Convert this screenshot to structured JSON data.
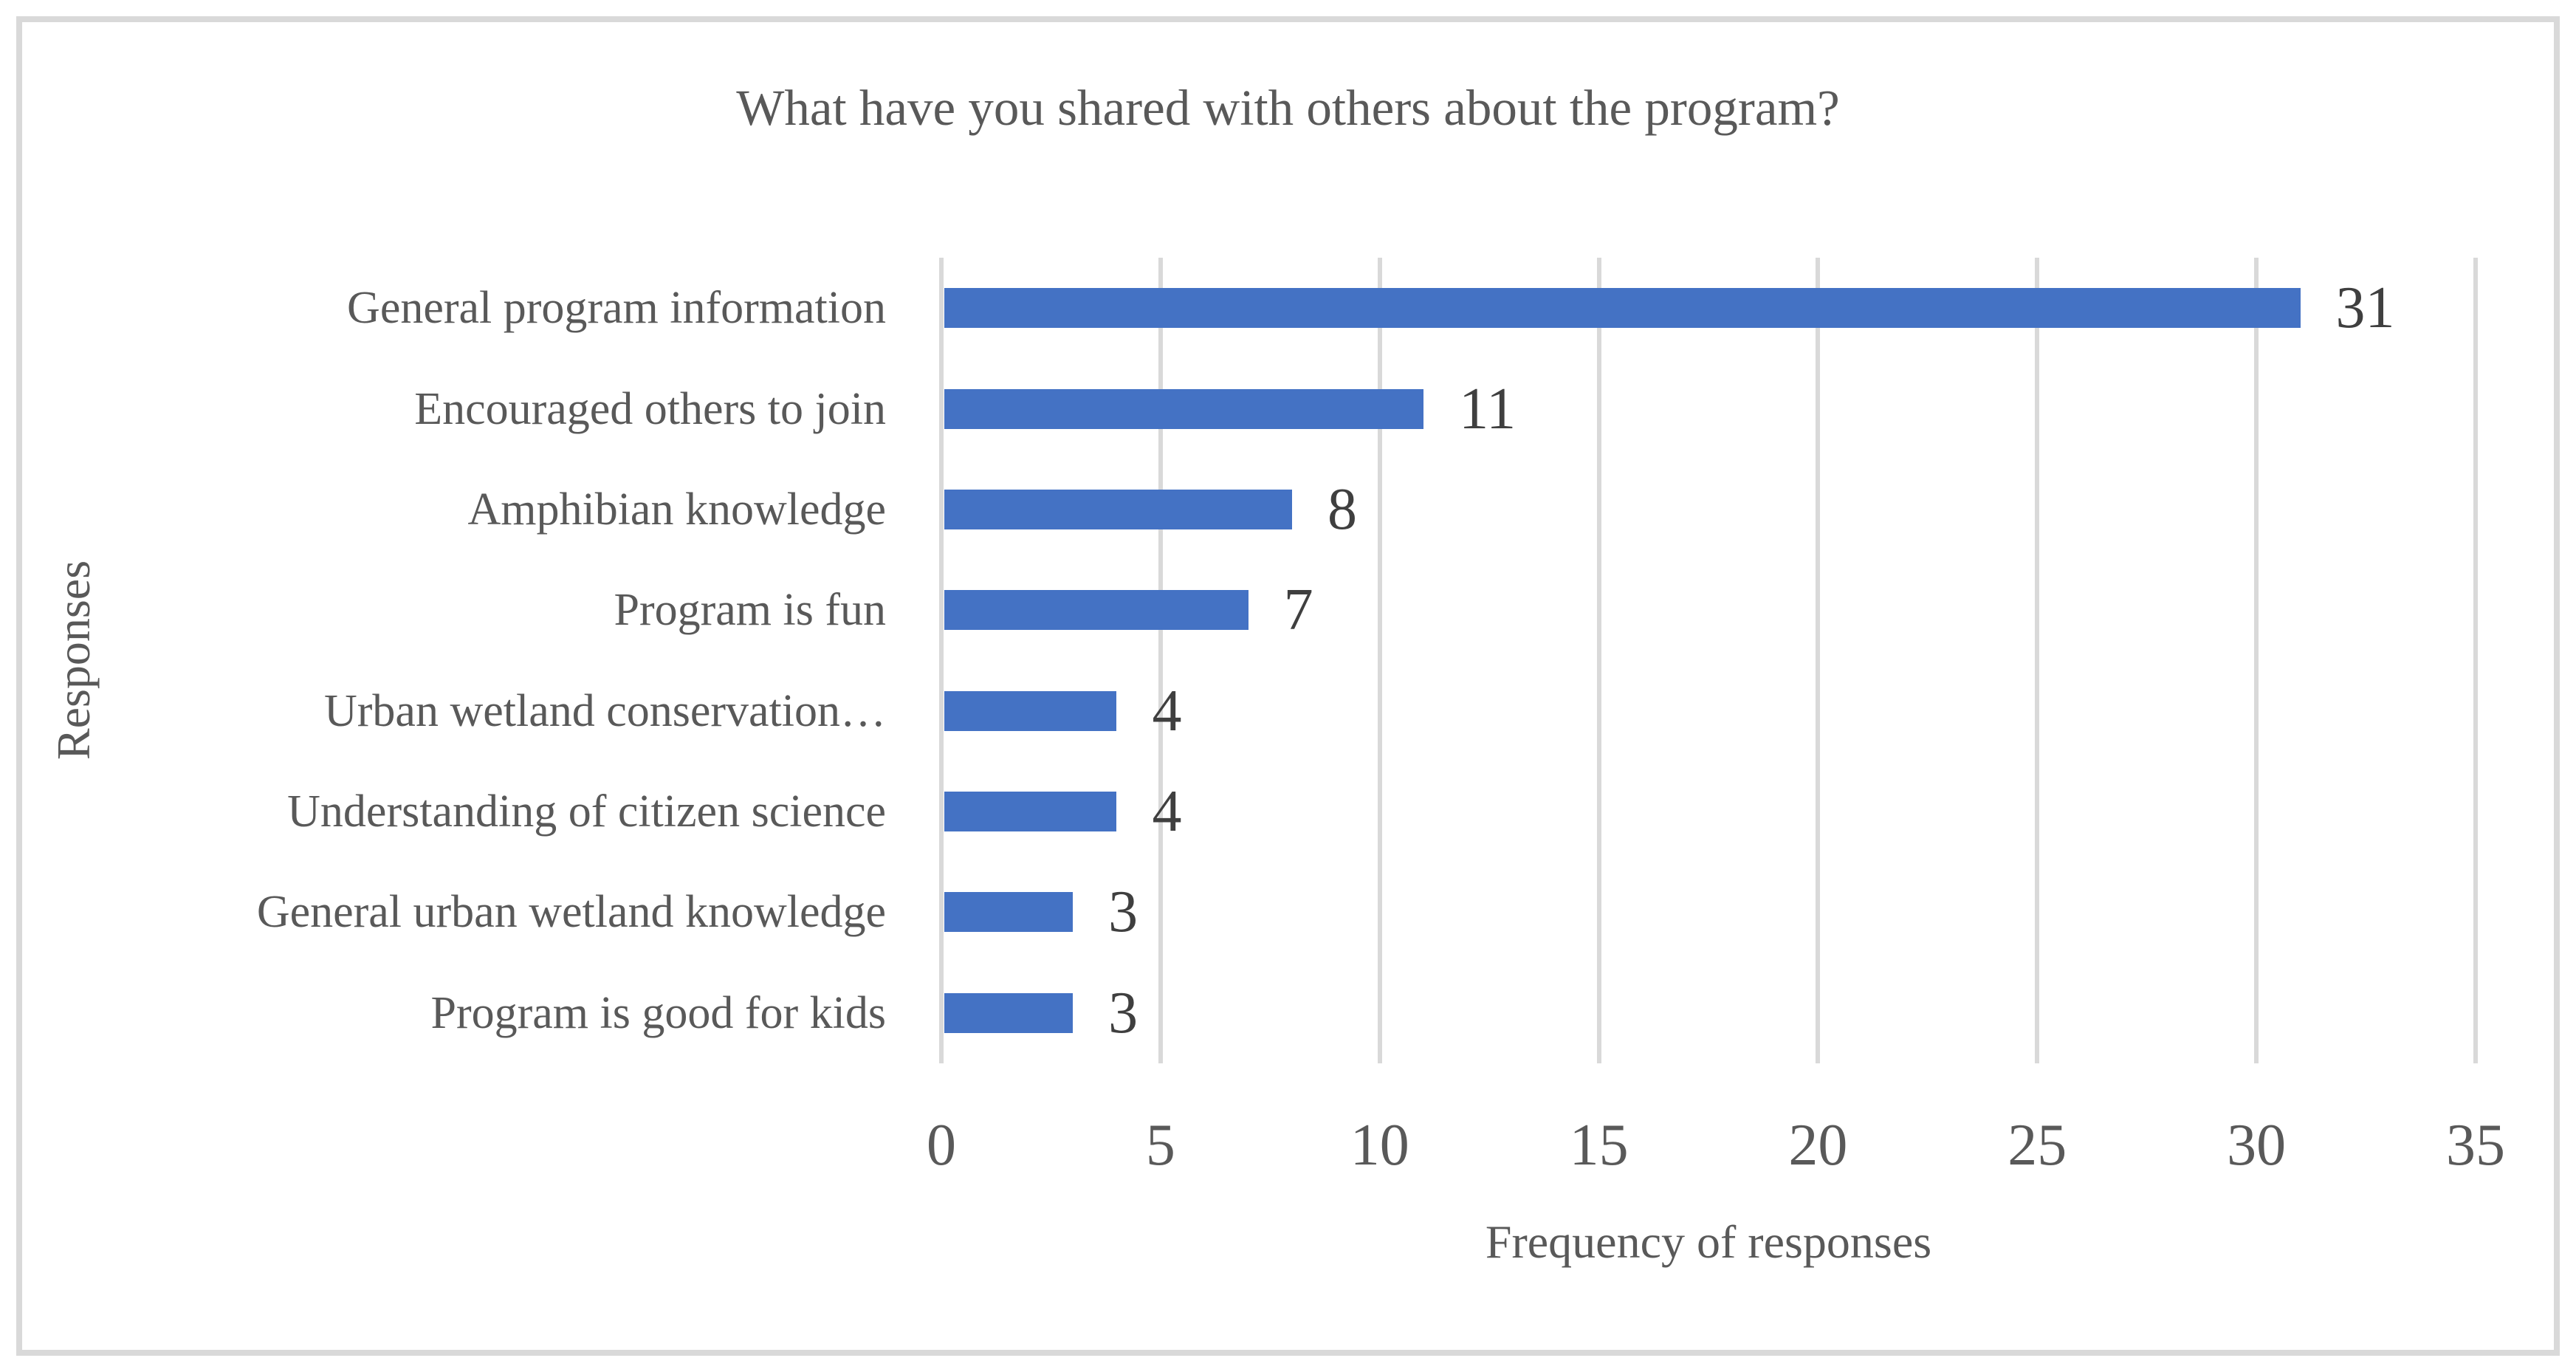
{
  "chart_data": {
    "type": "bar",
    "orientation": "horizontal",
    "title": "What have you shared with others about the program?",
    "xlabel": "Frequency of responses",
    "ylabel": "Responses",
    "categories": [
      "General program information",
      "Encouraged others to join",
      "Amphibian knowledge",
      "Program is fun",
      "Urban wetland conservation…",
      "Understanding of citizen science",
      "General urban wetland knowledge",
      "Program is good for kids"
    ],
    "values": [
      31,
      11,
      8,
      7,
      4,
      4,
      3,
      3
    ],
    "data_labels": [
      "31",
      "11",
      "8",
      "7",
      "4",
      "4",
      "3",
      "3"
    ],
    "xlim": [
      0,
      35
    ],
    "x_ticks": [
      0,
      5,
      10,
      15,
      20,
      25,
      30,
      35
    ],
    "grid": "vertical-only",
    "legend": "none",
    "colors": {
      "bar": "#4472C4",
      "gridline": "#D9D9D9",
      "axis_text": "#595959",
      "title_text": "#595959",
      "data_label_text": "#3F3F3F",
      "frame_border": "#D9D9D9",
      "background": "#FFFFFF"
    }
  }
}
